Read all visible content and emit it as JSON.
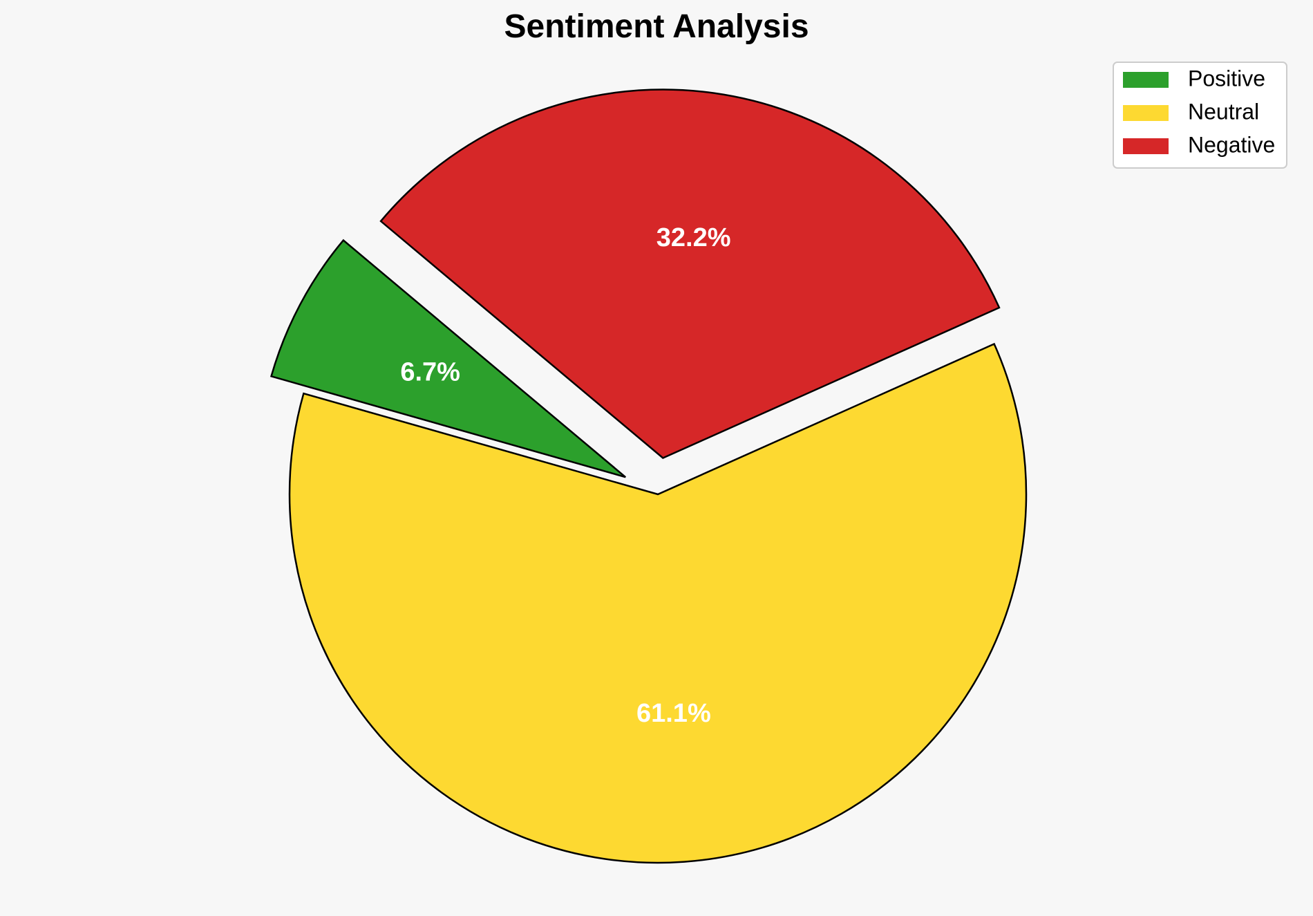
{
  "chart_data": {
    "type": "pie",
    "title": "Sentiment Analysis",
    "categories": [
      "Positive",
      "Neutral",
      "Negative"
    ],
    "values": [
      6.7,
      61.1,
      32.2
    ],
    "labels": [
      "6.7%",
      "61.1%",
      "32.2%"
    ],
    "colors": [
      "#2ca02c",
      "#fdd931",
      "#d62728"
    ],
    "exploded": [
      "Positive",
      "Negative"
    ],
    "start_angle_deg": 140,
    "direction": "counterclockwise",
    "legend_position": "top-right"
  }
}
